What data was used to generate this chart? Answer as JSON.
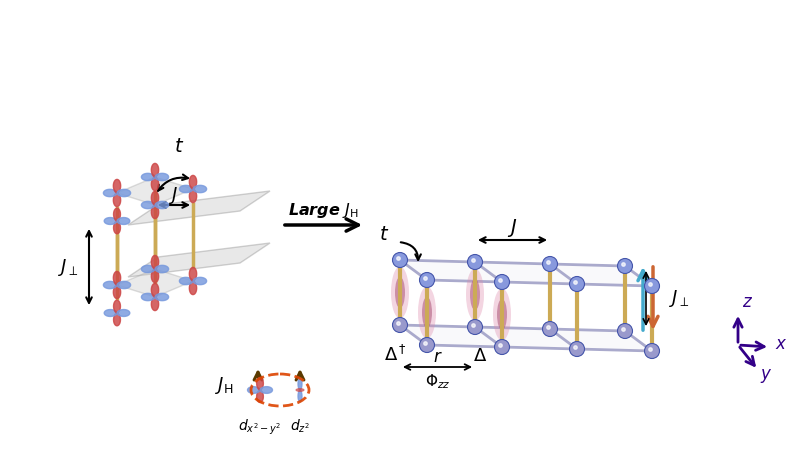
{
  "bg_color": "#ffffff",
  "orbital_blue": "#7799dd",
  "orbital_red": "#cc4444",
  "orbital_blue_dark": "#4466bb",
  "node_color_top": "#8899dd",
  "node_color_bot": "#9999cc",
  "bond_color": "#aaaacc",
  "pillar_color": "#ccaa55",
  "axis_color": "#330088",
  "pairing_color": "#dd88aa",
  "pairing_core": "#aa5577",
  "arrow_color_cyan": "#44aacc",
  "arrow_color_orange": "#cc6633"
}
